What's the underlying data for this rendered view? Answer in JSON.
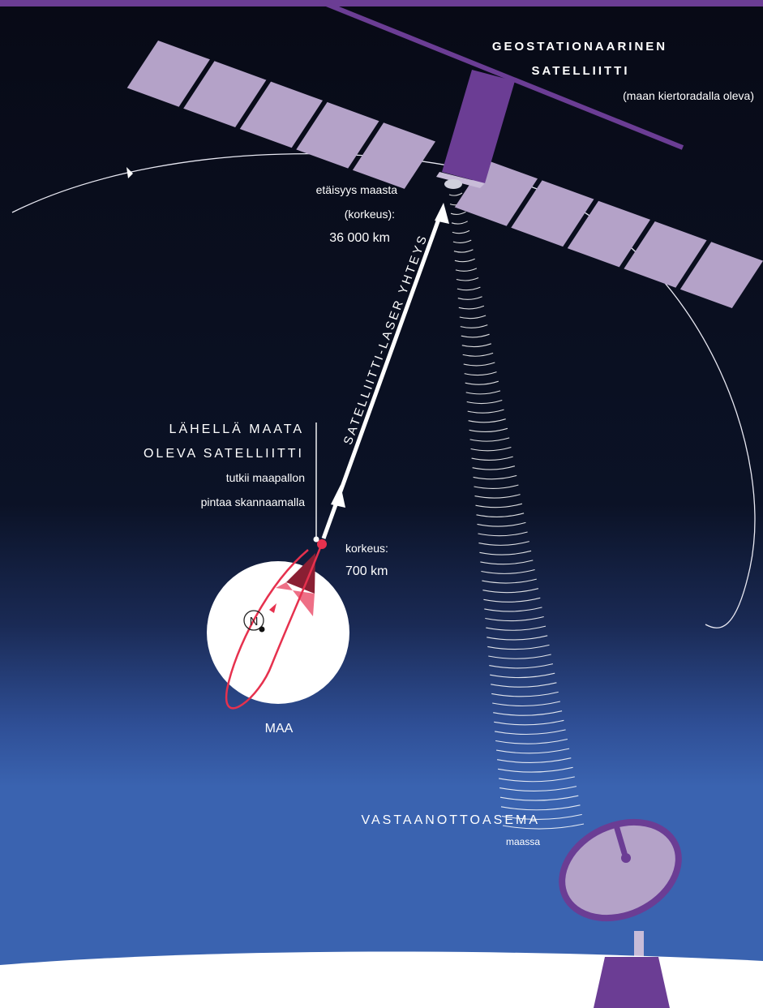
{
  "colors": {
    "background_top": "#080a16",
    "background_bottom": "#3a63b0",
    "panel_light": "#b4a2c8",
    "purple": "#6b3d94",
    "red": "#e6314e",
    "white": "#ffffff"
  },
  "labels": {
    "geo_title_line1": "GEOSTATIONAARINEN",
    "geo_title_line2": "SATELLIITTI",
    "geo_subtitle": "(maan kiertoradalla oleva)",
    "distance_line1": "etäisyys maasta",
    "distance_line2": "(korkeus):",
    "distance_line3": "36 000 km",
    "laser_link": "SATELLIITTI-LASER YHTEYS",
    "leo_title_line1": "LÄHELLÄ MAATA",
    "leo_title_line2": "OLEVA SATELLIITTI",
    "leo_desc_line1": "tutkii maapallon",
    "leo_desc_line2": "pintaa skannaamalla",
    "leo_height_line1": "korkeus:",
    "leo_height_line2": "700 km",
    "north": "N",
    "earth": "MAA",
    "station_title": "VASTAANOTTOASEMA",
    "station_subtitle": "maassa"
  },
  "icons": {
    "north": "north-pole-marker",
    "arrow": "arrowhead"
  }
}
